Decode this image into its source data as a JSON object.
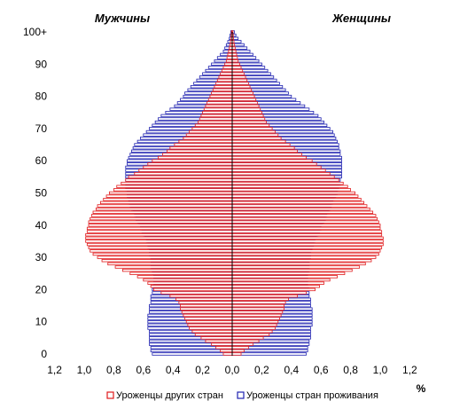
{
  "chart_data": {
    "type": "bar",
    "subtype": "population-pyramid",
    "title": "",
    "labels": {
      "left": "Мужчины",
      "right": "Женщины"
    },
    "unit": "%",
    "xlim": [
      -1.2,
      1.2
    ],
    "x_ticks": [
      "1,2",
      "1,0",
      "0,8",
      "0,6",
      "0,4",
      "0,2",
      "0,0",
      "0,2",
      "0,4",
      "0,6",
      "0,8",
      "1,0",
      "1,2"
    ],
    "y_ticks": [
      "0",
      "10",
      "20",
      "30",
      "40",
      "50",
      "60",
      "70",
      "80",
      "90",
      "100+"
    ],
    "ages": [
      0,
      1,
      2,
      3,
      4,
      5,
      6,
      7,
      8,
      9,
      10,
      11,
      12,
      13,
      14,
      15,
      16,
      17,
      18,
      19,
      20,
      21,
      22,
      23,
      24,
      25,
      26,
      27,
      28,
      29,
      30,
      31,
      32,
      33,
      34,
      35,
      36,
      37,
      38,
      39,
      40,
      41,
      42,
      43,
      44,
      45,
      46,
      47,
      48,
      49,
      50,
      51,
      52,
      53,
      54,
      55,
      56,
      57,
      58,
      59,
      60,
      61,
      62,
      63,
      64,
      65,
      66,
      67,
      68,
      69,
      70,
      71,
      72,
      73,
      74,
      75,
      76,
      77,
      78,
      79,
      80,
      81,
      82,
      83,
      84,
      85,
      86,
      87,
      88,
      89,
      90,
      91,
      92,
      93,
      94,
      95,
      96,
      97,
      98,
      99,
      100
    ],
    "grid": false,
    "legend_position": "bottom",
    "series": [
      {
        "name": "Уроженцы других стран",
        "color": "#e0191b",
        "fill": "#ffffff",
        "male": [
          0.06,
          0.08,
          0.11,
          0.14,
          0.18,
          0.21,
          0.25,
          0.27,
          0.29,
          0.3,
          0.31,
          0.32,
          0.33,
          0.34,
          0.35,
          0.35,
          0.36,
          0.38,
          0.42,
          0.48,
          0.53,
          0.55,
          0.57,
          0.6,
          0.64,
          0.69,
          0.74,
          0.79,
          0.84,
          0.88,
          0.91,
          0.94,
          0.96,
          0.97,
          0.98,
          0.99,
          0.99,
          0.99,
          0.98,
          0.98,
          0.97,
          0.97,
          0.96,
          0.95,
          0.94,
          0.92,
          0.91,
          0.89,
          0.87,
          0.85,
          0.83,
          0.8,
          0.78,
          0.75,
          0.72,
          0.7,
          0.66,
          0.63,
          0.6,
          0.57,
          0.54,
          0.5,
          0.47,
          0.44,
          0.42,
          0.39,
          0.36,
          0.33,
          0.31,
          0.29,
          0.27,
          0.25,
          0.23,
          0.22,
          0.21,
          0.2,
          0.19,
          0.18,
          0.17,
          0.16,
          0.15,
          0.14,
          0.13,
          0.12,
          0.11,
          0.1,
          0.09,
          0.08,
          0.07,
          0.06,
          0.05,
          0.04,
          0.035,
          0.03,
          0.025,
          0.02,
          0.016,
          0.012,
          0.009,
          0.007,
          0.005
        ],
        "female": [
          0.06,
          0.08,
          0.11,
          0.14,
          0.18,
          0.21,
          0.25,
          0.27,
          0.29,
          0.3,
          0.31,
          0.32,
          0.33,
          0.34,
          0.35,
          0.35,
          0.36,
          0.38,
          0.44,
          0.5,
          0.56,
          0.59,
          0.62,
          0.66,
          0.71,
          0.76,
          0.81,
          0.86,
          0.9,
          0.94,
          0.97,
          0.99,
          1.0,
          1.01,
          1.02,
          1.02,
          1.02,
          1.01,
          1.01,
          1.0,
          1.0,
          0.99,
          0.98,
          0.97,
          0.95,
          0.93,
          0.91,
          0.89,
          0.87,
          0.85,
          0.83,
          0.8,
          0.78,
          0.75,
          0.72,
          0.69,
          0.66,
          0.63,
          0.6,
          0.57,
          0.54,
          0.5,
          0.47,
          0.44,
          0.42,
          0.39,
          0.36,
          0.33,
          0.31,
          0.29,
          0.27,
          0.25,
          0.23,
          0.22,
          0.21,
          0.2,
          0.19,
          0.18,
          0.17,
          0.16,
          0.15,
          0.14,
          0.13,
          0.12,
          0.11,
          0.1,
          0.09,
          0.08,
          0.07,
          0.06,
          0.05,
          0.04,
          0.035,
          0.03,
          0.025,
          0.02,
          0.016,
          0.012,
          0.009,
          0.007,
          0.005
        ]
      },
      {
        "name": "Уроженцы стран проживания",
        "color": "#1f22b0",
        "fill": "#ffffff",
        "male": [
          0.54,
          0.55,
          0.55,
          0.56,
          0.56,
          0.56,
          0.56,
          0.56,
          0.57,
          0.57,
          0.57,
          0.57,
          0.57,
          0.56,
          0.56,
          0.56,
          0.55,
          0.55,
          0.55,
          0.54,
          0.54,
          0.54,
          0.53,
          0.53,
          0.53,
          0.54,
          0.54,
          0.55,
          0.55,
          0.55,
          0.55,
          0.56,
          0.56,
          0.57,
          0.57,
          0.58,
          0.59,
          0.6,
          0.61,
          0.62,
          0.63,
          0.64,
          0.65,
          0.66,
          0.67,
          0.68,
          0.69,
          0.7,
          0.7,
          0.71,
          0.71,
          0.72,
          0.72,
          0.72,
          0.72,
          0.72,
          0.72,
          0.72,
          0.72,
          0.71,
          0.71,
          0.7,
          0.69,
          0.68,
          0.67,
          0.66,
          0.64,
          0.62,
          0.6,
          0.58,
          0.56,
          0.54,
          0.52,
          0.5,
          0.48,
          0.45,
          0.42,
          0.39,
          0.37,
          0.35,
          0.33,
          0.32,
          0.3,
          0.28,
          0.26,
          0.24,
          0.22,
          0.2,
          0.18,
          0.16,
          0.14,
          0.12,
          0.1,
          0.08,
          0.06,
          0.05,
          0.04,
          0.03,
          0.02,
          0.015,
          0.01
        ],
        "female": [
          0.5,
          0.51,
          0.51,
          0.52,
          0.52,
          0.53,
          0.53,
          0.53,
          0.53,
          0.54,
          0.54,
          0.54,
          0.54,
          0.54,
          0.54,
          0.53,
          0.53,
          0.53,
          0.52,
          0.52,
          0.52,
          0.51,
          0.51,
          0.51,
          0.51,
          0.51,
          0.52,
          0.52,
          0.52,
          0.52,
          0.53,
          0.53,
          0.54,
          0.54,
          0.55,
          0.56,
          0.57,
          0.58,
          0.59,
          0.6,
          0.61,
          0.62,
          0.63,
          0.64,
          0.65,
          0.66,
          0.67,
          0.68,
          0.69,
          0.7,
          0.71,
          0.72,
          0.72,
          0.73,
          0.73,
          0.74,
          0.74,
          0.74,
          0.74,
          0.74,
          0.74,
          0.74,
          0.73,
          0.73,
          0.72,
          0.72,
          0.71,
          0.7,
          0.69,
          0.68,
          0.66,
          0.64,
          0.62,
          0.6,
          0.58,
          0.55,
          0.52,
          0.49,
          0.46,
          0.43,
          0.4,
          0.38,
          0.36,
          0.34,
          0.32,
          0.3,
          0.28,
          0.26,
          0.24,
          0.22,
          0.2,
          0.18,
          0.16,
          0.14,
          0.12,
          0.1,
          0.08,
          0.06,
          0.04,
          0.025,
          0.015
        ]
      }
    ]
  }
}
